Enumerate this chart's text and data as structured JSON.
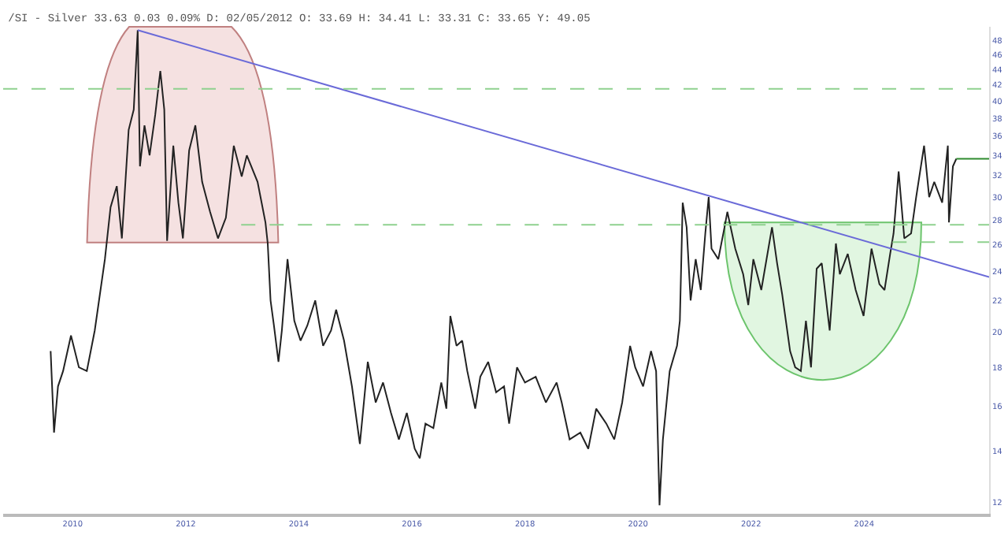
{
  "chart_data": {
    "type": "line",
    "title": "/SI - Silver 33.63 0.03 0.09% D: 02/05/2012 O: 33.69 H: 34.41 L: 33.31 C: 33.65 Y: 49.05",
    "series": [
      {
        "color": "#222222",
        "x": [
          2009.61,
          2009.67,
          2009.74,
          2009.83,
          2009.97,
          2010.11,
          2010.25,
          2010.39,
          2010.57,
          2010.67,
          2010.78,
          2010.87,
          2010.99,
          2011.08,
          2011.15,
          2011.19,
          2011.27,
          2011.36,
          2011.46,
          2011.55,
          2011.62,
          2011.67,
          2011.78,
          2011.87,
          2011.95,
          2012.06,
          2012.17,
          2012.29,
          2012.43,
          2012.57,
          2012.71,
          2012.85,
          2012.99,
          2013.08,
          2013.27,
          2013.41,
          2013.45,
          2013.5,
          2013.56,
          2013.64,
          2013.7,
          2013.8,
          2013.92,
          2014.03,
          2014.15,
          2014.29,
          2014.43,
          2014.57,
          2014.66,
          2014.8,
          2014.94,
          2015.08,
          2015.22,
          2015.36,
          2015.49,
          2015.63,
          2015.77,
          2015.91,
          2016.05,
          2016.14,
          2016.24,
          2016.38,
          2016.52,
          2016.61,
          2016.68,
          2016.79,
          2016.89,
          2016.98,
          2017.12,
          2017.21,
          2017.35,
          2017.49,
          2017.63,
          2017.72,
          2017.86,
          2018.0,
          2018.19,
          2018.37,
          2018.56,
          2018.65,
          2018.79,
          2018.98,
          2019.12,
          2019.26,
          2019.44,
          2019.58,
          2019.72,
          2019.86,
          2019.95,
          2020.09,
          2020.23,
          2020.32,
          2020.38,
          2020.44,
          2020.56,
          2020.69,
          2020.74,
          2020.79,
          2020.86,
          2020.93,
          2021.02,
          2021.11,
          2021.19,
          2021.25,
          2021.3,
          2021.42,
          2021.53,
          2021.58,
          2021.72,
          2021.86,
          2021.95,
          2022.04,
          2022.18,
          2022.37,
          2022.46,
          2022.55,
          2022.69,
          2022.78,
          2022.88,
          2022.97,
          2023.06,
          2023.16,
          2023.25,
          2023.39,
          2023.5,
          2023.57,
          2023.71,
          2023.85,
          2023.99,
          2024.13,
          2024.27,
          2024.36,
          2024.46,
          2024.52,
          2024.61,
          2024.71,
          2024.83,
          2024.92,
          2025.06,
          2025.15,
          2025.24,
          2025.38,
          2025.48,
          2025.5,
          2025.57,
          2025.63
        ],
        "values": [
          18.9,
          14.8,
          17.0,
          17.8,
          19.8,
          18.0,
          17.8,
          20.1,
          24.9,
          29.1,
          31.0,
          26.5,
          36.7,
          39.0,
          49.5,
          32.9,
          37.2,
          34.0,
          38.4,
          43.8,
          39.0,
          26.3,
          35.0,
          29.5,
          26.5,
          34.5,
          37.2,
          31.4,
          28.7,
          26.5,
          28.2,
          35.0,
          31.9,
          34.0,
          31.4,
          27.8,
          26.1,
          22.0,
          20.4,
          18.3,
          20.1,
          24.9,
          20.7,
          19.5,
          20.4,
          22.0,
          19.2,
          20.1,
          21.4,
          19.5,
          17.0,
          14.3,
          18.3,
          16.2,
          17.2,
          15.7,
          14.5,
          15.7,
          14.1,
          13.7,
          15.2,
          15.0,
          17.2,
          15.9,
          21.0,
          19.2,
          19.5,
          17.8,
          15.9,
          17.5,
          18.3,
          16.7,
          17.0,
          15.2,
          18.0,
          17.2,
          17.5,
          16.2,
          17.2,
          16.2,
          14.5,
          14.8,
          14.1,
          15.9,
          15.2,
          14.5,
          16.2,
          19.2,
          18.0,
          17.0,
          18.9,
          17.8,
          11.9,
          14.5,
          17.8,
          19.2,
          20.7,
          29.5,
          27.4,
          22.0,
          24.9,
          22.7,
          26.9,
          30.0,
          25.7,
          24.9,
          27.4,
          28.7,
          25.7,
          23.8,
          21.7,
          24.9,
          22.7,
          27.4,
          24.6,
          22.4,
          18.9,
          18.0,
          17.8,
          20.7,
          18.0,
          24.2,
          24.6,
          20.1,
          26.1,
          23.8,
          25.3,
          22.7,
          21.0,
          25.7,
          23.1,
          22.7,
          25.3,
          26.9,
          32.4,
          26.5,
          26.9,
          30.0,
          35.0,
          30.0,
          31.4,
          29.5,
          35.0,
          27.8,
          32.9,
          33.65
        ]
      },
      {
        "color": "#6a6ad8",
        "x": [
          2011.15,
          2026.21
        ],
        "values": [
          49.5,
          23.6
        ]
      },
      {
        "color": "#2e8b2e",
        "x": [
          2025.63,
          2026.21
        ],
        "values": [
          33.65,
          33.65
        ]
      },
      {
        "color": "#8fd18f",
        "line_style": "dashed",
        "x": [
          2012.98,
          2026.21
        ],
        "values": [
          27.6,
          27.6
        ]
      },
      {
        "color": "#8fd18f",
        "line_style": "dashed",
        "x": [
          2024.5,
          2026.21
        ],
        "values": [
          26.2,
          26.2
        ]
      }
    ],
    "ref_lines": [
      {
        "axis": "y",
        "value": 41.5,
        "color": "#8fd18f",
        "line_style": "dashed"
      }
    ],
    "xlim": [
      2008.77,
      2026.21
    ],
    "xticks": [
      2010,
      2012,
      2014,
      2016,
      2018,
      2020,
      2022,
      2024
    ],
    "ylim": [
      11.6,
      50
    ],
    "yticks": [
      12,
      14,
      16,
      18,
      20,
      22,
      24,
      26,
      28,
      30,
      32,
      34,
      36,
      38,
      40,
      42,
      44,
      46,
      48
    ],
    "log": "y"
  }
}
